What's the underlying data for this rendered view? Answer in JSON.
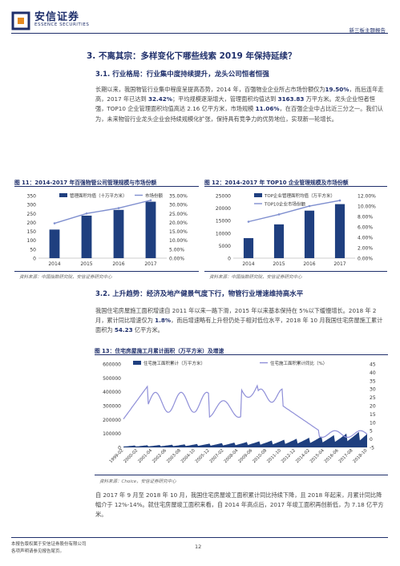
{
  "header": {
    "logo_cn": "安信证券",
    "logo_en": "ESSENCE SECURITIES",
    "right": "新三板主题报告"
  },
  "section": {
    "title": "3. 不离其宗：多样变化下哪些线索 2019 年保持延续？"
  },
  "s31": {
    "title": "3.1. 行业格局：行业集中度持续提升，龙头公司恒者恒强",
    "para": [
      {
        "t": "长期以来，我国物管行业集中程度呈提高态势，2014 年，百强物业企业所占市场份额仅为",
        "b": false
      },
      {
        "t": "19.50%",
        "b": true
      },
      {
        "t": "，而后连年走高，2017 年已达到 ",
        "b": false
      },
      {
        "t": "32.42%",
        "b": true
      },
      {
        "t": "；平均规模逐渐增大，管理面积均值达到 ",
        "b": false
      },
      {
        "t": "3163.83",
        "b": true
      },
      {
        "t": " 万平方米。龙头企业恒者恒强，TOP10 企业管理面积均值高达 2.16 亿平方米，市场规模 ",
        "b": false
      },
      {
        "t": "11.06%",
        "b": true
      },
      {
        "t": "，在百强企业中占比近三分之一。我们认为，未来物管行业龙头企业会持续规模化扩张，保持具有竞争力的优势地位，实现新一轮增长。",
        "b": false
      }
    ]
  },
  "fig11": {
    "title": "图 11：2014-2017 年百强物管公司管理规模与市场份额",
    "source": "资料来源：中国指数研究院，安信证券研究中心",
    "chart_data": {
      "type": "bar",
      "categories": [
        "2014",
        "2015",
        "2016",
        "2017"
      ],
      "series": [
        {
          "name": "管理面积均值（十万平方米）",
          "type": "bar",
          "values": [
            160,
            238,
            270,
            316
          ],
          "color": "#1f3f7f"
        },
        {
          "name": "市场份额",
          "type": "line",
          "values": [
            19.5,
            25.0,
            28.0,
            32.42
          ],
          "color": "#7f8fcf"
        }
      ],
      "ylim": [
        0,
        350
      ],
      "yticks": [
        0,
        50,
        100,
        150,
        200,
        250,
        300,
        350
      ],
      "y2lim": [
        0,
        35
      ],
      "y2ticks": [
        "0.00%",
        "5.00%",
        "10.00%",
        "15.00%",
        "20.00%",
        "25.00%",
        "30.00%",
        "35.00%"
      ]
    }
  },
  "fig12": {
    "title": "图 12：2014-2017 年 TOP10 企业管理规模及市场份额",
    "source": "资料来源：中国指数研究院，安信证券研究中心",
    "chart_data": {
      "type": "bar",
      "categories": [
        "2014",
        "2015",
        "2016",
        "2017"
      ],
      "series": [
        {
          "name": "TOP企业管理面积均值（万平方米）",
          "type": "bar",
          "values": [
            8000,
            13500,
            19000,
            21600
          ],
          "color": "#1f3f7f"
        },
        {
          "name": "TOP10企业市场份额",
          "type": "line",
          "values": [
            7.0,
            8.4,
            10.0,
            11.06
          ],
          "color": "#7f8fcf"
        }
      ],
      "ylim": [
        0,
        25000
      ],
      "yticks": [
        0,
        5000,
        10000,
        15000,
        20000,
        25000
      ],
      "y2lim": [
        0,
        12
      ],
      "y2ticks": [
        "0.00%",
        "2.00%",
        "4.00%",
        "6.00%",
        "8.00%",
        "10.00%",
        "12.00%"
      ]
    }
  },
  "s32": {
    "title": "3.2. 上升趋势：经济及地产健景气度下行，物管行业增速维持高水平",
    "para": [
      {
        "t": "我国住宅房屋施工面积增速自 2011 年以来一路下滑，2015 年以来基本保持在 5%以下缓慢增长。2018 年 2 月，累计同比增速仅为 ",
        "b": false
      },
      {
        "t": "1.8%",
        "b": true
      },
      {
        "t": "，而后增速略有上升但仍处于相对低位水平，2018 年 10 月我国住宅房屋施工累计面积为 ",
        "b": false
      },
      {
        "t": "54.23",
        "b": true
      },
      {
        "t": " 亿平方米。",
        "b": false
      }
    ]
  },
  "fig13": {
    "title": "图 13：住宅房屋施工月累计面积（万平方米）及增速",
    "source": "资料来源：Choice，安信证券研究中心",
    "chart_data": {
      "type": "area",
      "series": [
        {
          "name": "住宅施工面积累计（万平方米）",
          "type": "area",
          "color": "#1f3f7f"
        },
        {
          "name": "住宅施工面积累计同比（%）",
          "type": "line",
          "color": "#8f8fd8"
        }
      ],
      "ylim": [
        0,
        600000
      ],
      "yticks": [
        0,
        100000,
        200000,
        300000,
        400000,
        500000,
        600000
      ],
      "y2lim": [
        -5,
        45
      ],
      "y2ticks": [
        -5,
        0,
        5,
        10,
        15,
        20,
        25,
        30,
        35,
        40,
        45
      ],
      "xticks": [
        "1999-02",
        "2000-02",
        "2001-04",
        "2002-06",
        "2003-08",
        "2004-10",
        "2005-12",
        "2007-02",
        "2008-04",
        "2009-06",
        "2010-08",
        "2011-10",
        "2012-12",
        "2014-02",
        "2015-04",
        "2016-06",
        "2017-08",
        "2018-10"
      ]
    }
  },
  "closing": {
    "para": [
      {
        "t": "自 2017 年 9 月至 2018 年 10 月，我国住宅房屋竣工面积累计同比持续下降，且 2018 年起来，月累计同比降幅介于 12%-14%。就住宅房屋竣工面积来看，自 2014 年高点后，2017 年竣工面积再创新低，为 7.18 亿平方米。",
        "b": false
      }
    ]
  },
  "footer": {
    "line1": "本报告版权属于安信证券股份有限公司",
    "line2": "各项声明请参见报告尾页。",
    "page": "12"
  }
}
